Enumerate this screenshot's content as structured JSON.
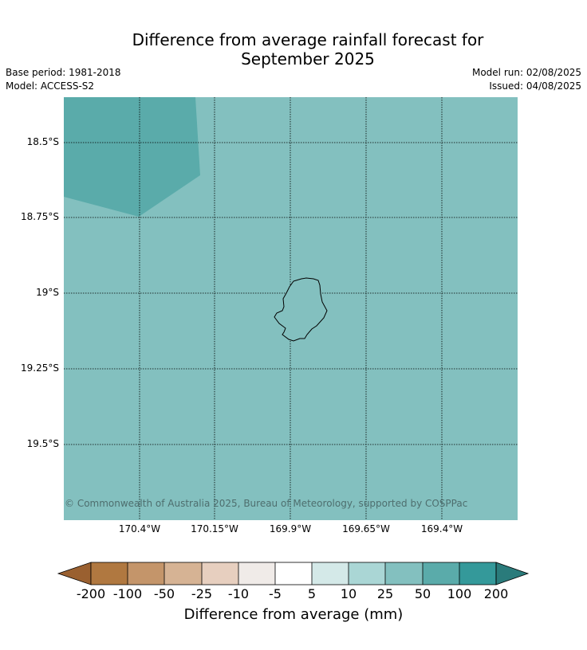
{
  "title_line1": "Difference from average rainfall forecast for",
  "title_line2": "September 2025",
  "meta": {
    "base_period": "Base period: 1981-2018",
    "model": "Model: ACCESS-S2",
    "model_run": "Model run: 02/08/2025",
    "issued": "Issued: 04/08/2025"
  },
  "map": {
    "background_color": "#83c0bf",
    "anomaly_patch_color": "#5aabaa",
    "lat_labels": [
      "18.5°S",
      "18.75°S",
      "19°S",
      "19.25°S",
      "19.5°S"
    ],
    "lon_labels": [
      "170.4°W",
      "170.15°W",
      "169.9°W",
      "169.65°W",
      "169.4°W"
    ],
    "copyright": "© Commonwealth of Australia 2025, Bureau of Meteorology, supported by COSPPac",
    "island_fill": "#83c0bf"
  },
  "colorbar": {
    "ticks": [
      "-200",
      "-100",
      "-50",
      "-25",
      "-10",
      "-5",
      "5",
      "10",
      "25",
      "50",
      "100",
      "200"
    ],
    "colors": [
      "#9a6030",
      "#b07840",
      "#c4956a",
      "#d6b394",
      "#e7cfbf",
      "#f0ebe8",
      "#ffffff",
      "#d4e9e8",
      "#aad6d5",
      "#83c0bf",
      "#5aabaa",
      "#34999a",
      "#2a7b7b"
    ],
    "label": "Difference from average (mm)"
  }
}
